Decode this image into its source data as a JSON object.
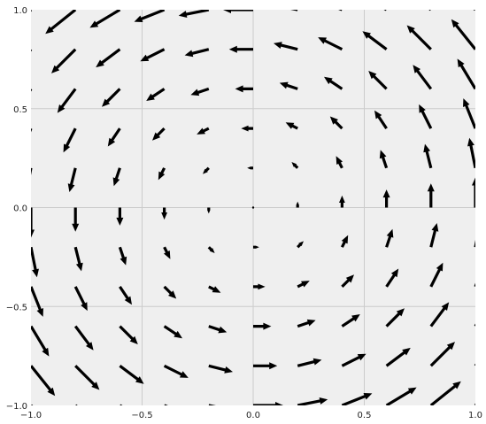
{
  "chart_data": {
    "type": "quiver",
    "title": "",
    "xlabel": "",
    "ylabel": "",
    "xlim": [
      -1.0,
      1.0
    ],
    "ylim": [
      -1.0,
      1.0
    ],
    "grid": true,
    "style": "ggplot-like gray background",
    "colors": {
      "background": "#efefef",
      "grid": "#cbcbcb",
      "arrow": "#000000",
      "text": "#222222"
    },
    "x_ticks": [
      {
        "value": -1.0,
        "label": "−1.0"
      },
      {
        "value": -0.5,
        "label": "−0.5"
      },
      {
        "value": 0.0,
        "label": "0.0"
      },
      {
        "value": 0.5,
        "label": "0.5"
      },
      {
        "value": 1.0,
        "label": "1.0"
      }
    ],
    "y_ticks": [
      {
        "value": -1.0,
        "label": "−1.0"
      },
      {
        "value": -0.5,
        "label": "−0.5"
      },
      {
        "value": 0.0,
        "label": "0.0"
      },
      {
        "value": 0.5,
        "label": "0.5"
      },
      {
        "value": 1.0,
        "label": "1.0"
      }
    ],
    "grid_x": [
      -1.0,
      -0.8,
      -0.6,
      -0.4,
      -0.2,
      0.0,
      0.2,
      0.4,
      0.6,
      0.8,
      1.0
    ],
    "grid_y": [
      -1.0,
      -0.8,
      -0.6,
      -0.4,
      -0.2,
      0.0,
      0.2,
      0.4,
      0.6,
      0.8,
      1.0
    ],
    "field": "u = -y, v = x (rotational flow)"
  }
}
